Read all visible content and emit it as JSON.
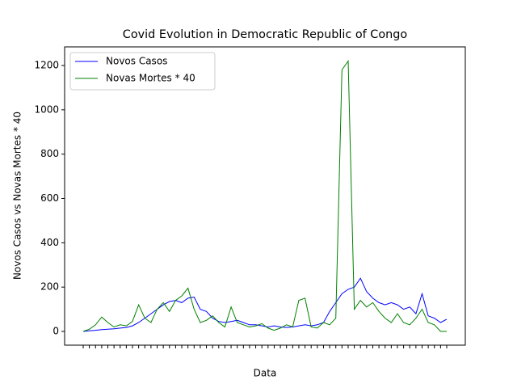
{
  "chart_data": {
    "type": "line",
    "title": "Covid Evolution in Democratic Republic of Congo",
    "x_label": "Data",
    "y_label": "Novos Casos vs Novas Mortes * 40",
    "categories": [
      null,
      null,
      null,
      null,
      null,
      null,
      null,
      null,
      null,
      null,
      null,
      null,
      null,
      null,
      null,
      null,
      null,
      null,
      null,
      null,
      null,
      null,
      null,
      null,
      null,
      null,
      null,
      null,
      null,
      null,
      null,
      null,
      null,
      null,
      null,
      null,
      null,
      null,
      null,
      null,
      null,
      null,
      null,
      null,
      null,
      null,
      null,
      null,
      null,
      null,
      null,
      null,
      null,
      null,
      null,
      null,
      null,
      null,
      null,
      null
    ],
    "series": [
      {
        "name": "Novos Casos",
        "color": "#0000ff",
        "values": [
          0,
          3,
          5,
          8,
          10,
          12,
          15,
          18,
          25,
          40,
          60,
          80,
          100,
          120,
          135,
          140,
          130,
          150,
          155,
          100,
          90,
          60,
          45,
          40,
          45,
          50,
          40,
          30,
          30,
          25,
          20,
          25,
          20,
          18,
          20,
          25,
          30,
          25,
          30,
          40,
          90,
          130,
          170,
          190,
          200,
          240,
          180,
          150,
          130,
          120,
          130,
          120,
          100,
          110,
          80,
          170,
          70,
          60,
          40,
          55
        ]
      },
      {
        "name": "Novas Mortes * 40",
        "color": "#008000",
        "values": [
          0,
          10,
          30,
          65,
          40,
          20,
          30,
          25,
          45,
          120,
          60,
          40,
          100,
          130,
          90,
          140,
          160,
          195,
          100,
          40,
          50,
          70,
          40,
          20,
          110,
          40,
          30,
          20,
          25,
          35,
          15,
          5,
          15,
          30,
          20,
          140,
          150,
          20,
          15,
          40,
          30,
          60,
          1180,
          1220,
          100,
          140,
          110,
          130,
          90,
          60,
          40,
          80,
          40,
          30,
          60,
          100,
          40,
          30,
          0,
          0
        ]
      }
    ],
    "ylim": [
      -62,
      1284
    ],
    "yticks": [
      0,
      200,
      400,
      600,
      800,
      1000,
      1200
    ],
    "legend": "upper left"
  }
}
